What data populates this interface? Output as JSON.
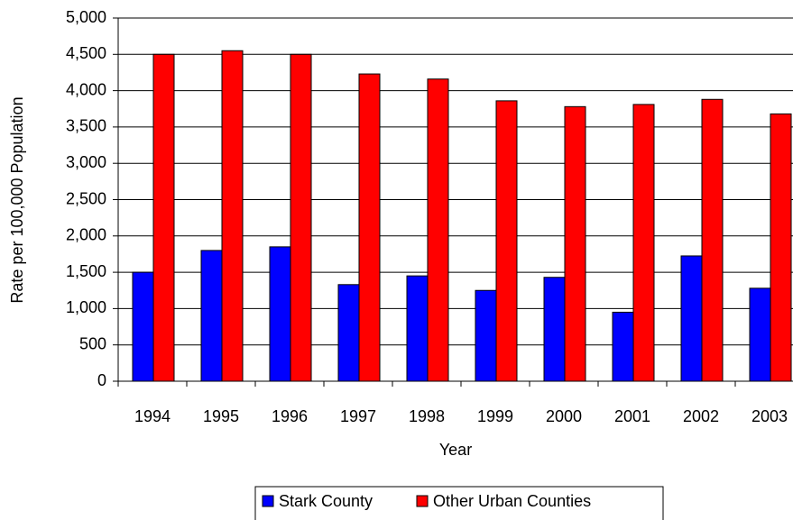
{
  "chart_data": {
    "type": "bar",
    "x_label": "Year",
    "y_label": "Rate per 100,000 Population",
    "categories": [
      "1994",
      "1995",
      "1996",
      "1997",
      "1998",
      "1999",
      "2000",
      "2001",
      "2002",
      "2003"
    ],
    "series": [
      {
        "name": "Stark County",
        "color": "#0000ff",
        "values": [
          1500,
          1800,
          1850,
          1330,
          1450,
          1250,
          1430,
          950,
          1725,
          1280
        ]
      },
      {
        "name": "Other Urban Counties",
        "color": "#ff0000",
        "values": [
          4500,
          4550,
          4500,
          4230,
          4160,
          3860,
          3780,
          3810,
          3880,
          3680
        ]
      }
    ],
    "ylim": [
      0,
      5000
    ],
    "yticks": [
      0,
      {
        "value": 500,
        "label": "500"
      },
      {
        "value": 1000,
        "label": "1,000"
      },
      {
        "value": 1500,
        "label": "1,500"
      },
      {
        "value": 2000,
        "label": "2,000"
      },
      {
        "value": 2500,
        "label": "2,500"
      },
      {
        "value": 3000,
        "label": "3,000"
      },
      {
        "value": 3500,
        "label": "3,500"
      },
      {
        "value": 4000,
        "label": "4,000"
      },
      {
        "value": 4500,
        "label": "4,500"
      },
      {
        "value": 5000,
        "label": "5,000"
      }
    ],
    "grid": true,
    "legend": "bottom"
  }
}
